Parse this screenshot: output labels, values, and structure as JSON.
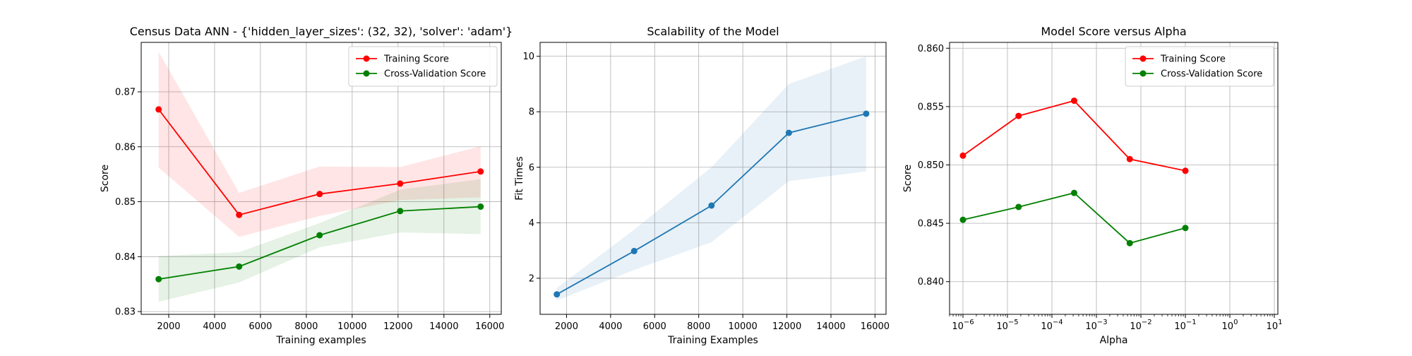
{
  "colors": {
    "train": "#ff0000",
    "cv": "#008000",
    "fit": "#1f77b4",
    "grid": "#b0b0b0"
  },
  "chart_data": [
    {
      "type": "line",
      "title": "Census Data ANN - {'hidden_layer_sizes': (32, 32), 'solver': 'adam'}",
      "xlabel": "Training examples",
      "ylabel": "Score",
      "xlim": [
        800,
        16500
      ],
      "ylim": [
        0.8295,
        0.879
      ],
      "xticks": [
        2000,
        4000,
        6000,
        8000,
        10000,
        12000,
        14000,
        16000
      ],
      "yticks": [
        0.83,
        0.84,
        0.85,
        0.86,
        0.87
      ],
      "ytick_decimals": 2,
      "grid": true,
      "legend": "top-right",
      "series": [
        {
          "name": "Training Score",
          "color": "train",
          "x": [
            1560,
            5070,
            8580,
            12090,
            15600
          ],
          "y": [
            0.8668,
            0.8476,
            0.8514,
            0.8533,
            0.8555
          ],
          "y_low": [
            0.8562,
            0.8436,
            0.8474,
            0.8503,
            0.8508
          ],
          "y_high": [
            0.8773,
            0.8516,
            0.8564,
            0.8563,
            0.8601
          ]
        },
        {
          "name": "Cross-Validation Score",
          "color": "cv",
          "x": [
            1560,
            5070,
            8580,
            12090,
            15600
          ],
          "y": [
            0.8359,
            0.8382,
            0.8439,
            0.8483,
            0.8491
          ],
          "y_low": [
            0.8318,
            0.8353,
            0.8417,
            0.8444,
            0.8441
          ],
          "y_high": [
            0.8401,
            0.8408,
            0.8461,
            0.8522,
            0.8541
          ]
        }
      ]
    },
    {
      "type": "line",
      "title": "Scalability of the Model",
      "xlabel": "Training Examples",
      "ylabel": "Fit Times",
      "xlim": [
        800,
        16500
      ],
      "ylim": [
        0.7,
        10.5
      ],
      "xticks": [
        2000,
        4000,
        6000,
        8000,
        10000,
        12000,
        14000,
        16000
      ],
      "yticks": [
        2,
        4,
        6,
        8,
        10
      ],
      "ytick_decimals": 0,
      "grid": true,
      "legend": "none",
      "series": [
        {
          "name": "",
          "color": "fit",
          "x": [
            1560,
            5070,
            8580,
            12090,
            15600
          ],
          "y": [
            1.42,
            2.98,
            4.62,
            7.24,
            7.93
          ],
          "y_low": [
            1.2,
            2.3,
            3.3,
            5.5,
            5.85
          ],
          "y_high": [
            1.65,
            3.75,
            6.0,
            9.0,
            10.0
          ]
        }
      ]
    },
    {
      "type": "line",
      "title": "Model Score versus Alpha",
      "xlabel": "Alpha",
      "ylabel": "Score",
      "xscale": "log",
      "xlim": [
        5e-07,
        12
      ],
      "ylim": [
        0.8372,
        0.8605
      ],
      "xticks": [
        1e-06,
        1e-05,
        0.0001,
        0.001,
        0.01,
        0.1,
        1,
        10
      ],
      "xtick_exponents": [
        "−6",
        "−5",
        "−4",
        "−3",
        "−2",
        "−1",
        "0",
        "1"
      ],
      "yticks": [
        0.84,
        0.845,
        0.85,
        0.855,
        0.86
      ],
      "ytick_decimals": 3,
      "grid": true,
      "legend": "top-right",
      "series": [
        {
          "name": "Training Score",
          "color": "train",
          "x": [
            1e-06,
            1.78e-05,
            0.000316,
            0.00562,
            0.1
          ],
          "y": [
            0.8508,
            0.8542,
            0.8555,
            0.8505,
            0.8495
          ]
        },
        {
          "name": "Cross-Validation Score",
          "color": "cv",
          "x": [
            1e-06,
            1.78e-05,
            0.000316,
            0.00562,
            0.1
          ],
          "y": [
            0.8453,
            0.8464,
            0.8476,
            0.8433,
            0.8446
          ]
        }
      ]
    }
  ]
}
